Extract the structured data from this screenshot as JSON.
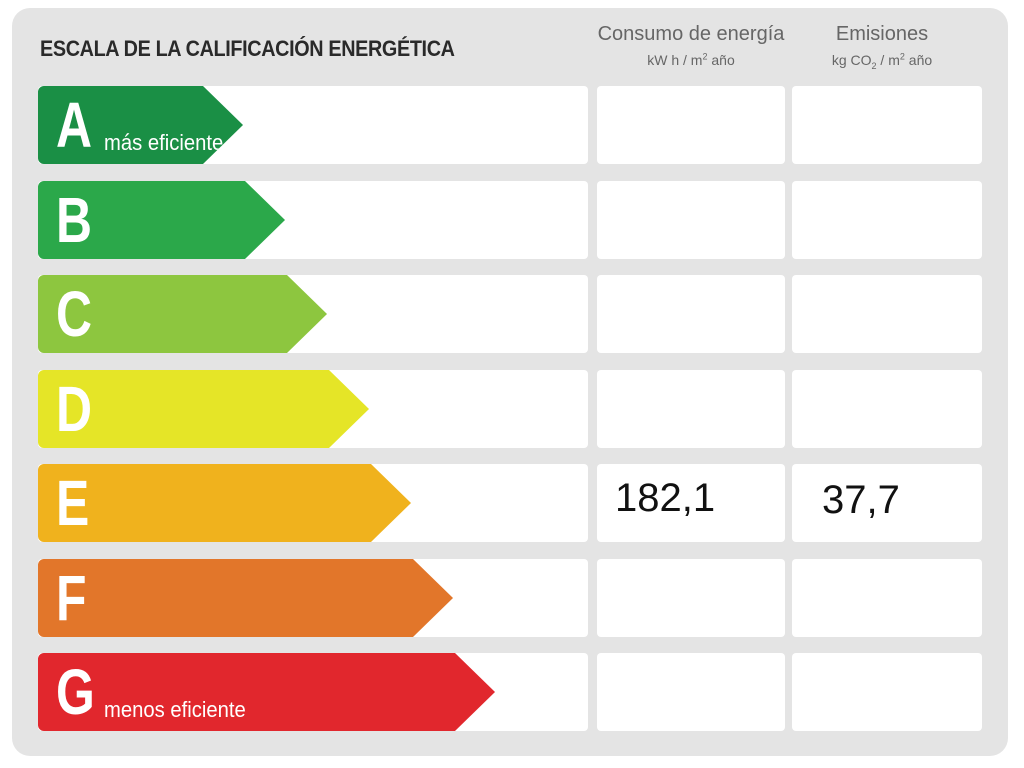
{
  "title": "ESCALA DE LA CALIFICACIÓN ENERGÉTICA",
  "columns": {
    "consumo": {
      "header": "Consumo de energía",
      "unit_prefix": "kW h / m",
      "unit_sup": "2",
      "unit_suffix": " año"
    },
    "emisiones": {
      "header": "Emisiones",
      "unit_prefix": "kg CO",
      "unit_sub": "2",
      "unit_mid": " / m",
      "unit_sup": "2",
      "unit_suffix": " año"
    }
  },
  "ratings": [
    {
      "letter": "A",
      "label": "más eficiente",
      "color": "#1a8f45",
      "consumo": "",
      "emisiones": ""
    },
    {
      "letter": "B",
      "label": "",
      "color": "#2ba84a",
      "consumo": "",
      "emisiones": ""
    },
    {
      "letter": "C",
      "label": "",
      "color": "#8dc63f",
      "consumo": "",
      "emisiones": ""
    },
    {
      "letter": "D",
      "label": "",
      "color": "#e5e527",
      "consumo": "",
      "emisiones": ""
    },
    {
      "letter": "E",
      "label": "",
      "color": "#f0b21d",
      "consumo": "182,1",
      "emisiones": "37,7"
    },
    {
      "letter": "F",
      "label": "",
      "color": "#e2762a",
      "consumo": "",
      "emisiones": ""
    },
    {
      "letter": "G",
      "label": "menos eficiente",
      "color": "#e1272d",
      "consumo": "",
      "emisiones": ""
    }
  ]
}
